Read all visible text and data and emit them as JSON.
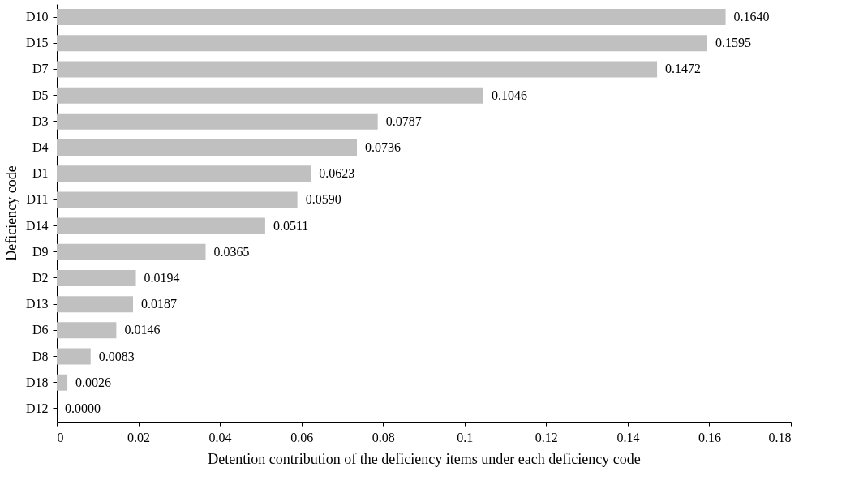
{
  "chart_data": {
    "type": "bar",
    "orientation": "horizontal",
    "xlabel": "Detention contribution of the deficiency items under each deficiency code",
    "ylabel": "Deficiency code",
    "categories": [
      "D10",
      "D15",
      "D7",
      "D5",
      "D3",
      "D4",
      "D1",
      "D11",
      "D14",
      "D9",
      "D2",
      "D13",
      "D6",
      "D8",
      "D18",
      "D12"
    ],
    "values": [
      0.164,
      0.1595,
      0.1472,
      0.1046,
      0.0787,
      0.0736,
      0.0623,
      0.059,
      0.0511,
      0.0365,
      0.0194,
      0.0187,
      0.0146,
      0.0083,
      0.0026,
      0
    ],
    "value_labels": [
      "0.1640",
      "0.1595",
      "0.1472",
      "0.1046",
      "0.0787",
      "0.0736",
      "0.0623",
      "0.0590",
      "0.0511",
      "0.0365",
      "0.0194",
      "0.0187",
      "0.0146",
      "0.0083",
      "0.0026",
      "0.0000"
    ],
    "color": "#c0c0c0",
    "xlim": [
      0,
      0.18
    ],
    "xticks": [
      0,
      0.02,
      0.04,
      0.06,
      0.08,
      0.1,
      0.12,
      0.14,
      0.16,
      0.18
    ],
    "grid": false
  }
}
